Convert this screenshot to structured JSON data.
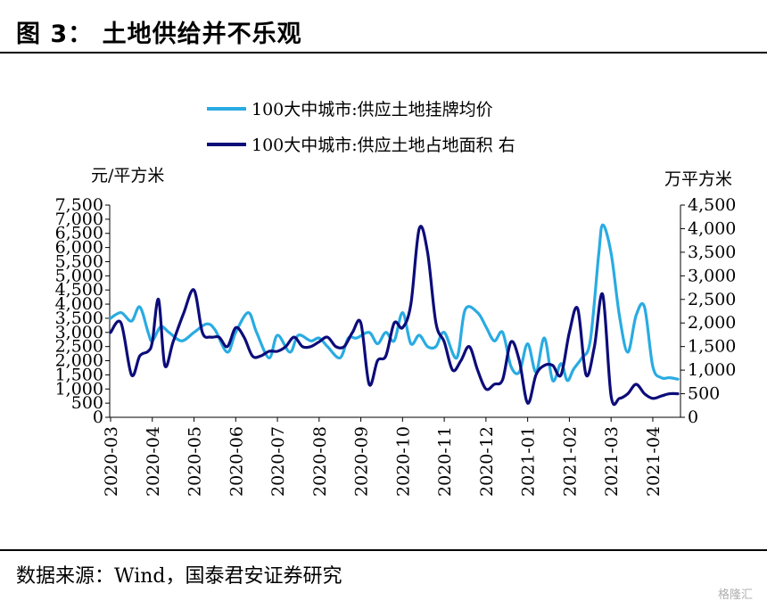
{
  "title": "图 3：  土地供给并不乐观",
  "source": "数据来源：Wind，国泰君安证券研究",
  "watermark": "格隆汇",
  "chart_data": {
    "type": "line",
    "left_unit": "元/平方米",
    "right_unit": "万平方米",
    "y_left_ticks": [
      "0",
      "500",
      "1,000",
      "1,500",
      "2,000",
      "2,500",
      "3,000",
      "3,500",
      "4,000",
      "4,500",
      "5,000",
      "5,500",
      "6,000",
      "6,500",
      "7,000",
      "7,500"
    ],
    "y_right_ticks": [
      "0",
      "500",
      "1,000",
      "1,500",
      "2,000",
      "2,500",
      "3,000",
      "3,500",
      "4,000",
      "4,500"
    ],
    "ylim_left": [
      0,
      7500
    ],
    "ylim_right": [
      0,
      4500
    ],
    "x_labels": [
      "2020-03",
      "2020-04",
      "2020-05",
      "2020-06",
      "2020-07",
      "2020-08",
      "2020-09",
      "2020-10",
      "2020-11",
      "2020-12",
      "2021-01",
      "2021-02",
      "2021-03",
      "2021-04"
    ],
    "x_range": [
      0,
      13.6
    ],
    "series": [
      {
        "name": "100大中城市:供应土地挂牌均价",
        "color": "#29abe2",
        "axis": "left",
        "x": [
          0,
          0.25,
          0.5,
          0.7,
          0.9,
          1.0,
          1.2,
          1.4,
          1.7,
          2.0,
          2.3,
          2.5,
          2.8,
          3.0,
          3.3,
          3.5,
          3.8,
          4.0,
          4.3,
          4.5,
          4.8,
          5.0,
          5.2,
          5.5,
          5.7,
          5.9,
          6.2,
          6.4,
          6.6,
          6.8,
          7.0,
          7.2,
          7.4,
          7.6,
          7.8,
          8.0,
          8.3,
          8.5,
          8.8,
          9.0,
          9.2,
          9.4,
          9.6,
          9.8,
          10.0,
          10.2,
          10.4,
          10.6,
          10.8,
          10.95,
          11.1,
          11.3,
          11.5,
          11.7,
          11.8,
          12.0,
          12.2,
          12.4,
          12.6,
          12.8,
          13.0,
          13.2,
          13.4,
          13.6
        ],
        "y": [
          3500,
          3700,
          3400,
          3900,
          3000,
          2700,
          3200,
          3000,
          2700,
          3000,
          3300,
          3100,
          2300,
          3000,
          3700,
          3000,
          2100,
          2900,
          2300,
          2900,
          2700,
          2800,
          2500,
          2100,
          2800,
          2800,
          3000,
          2600,
          3000,
          2700,
          3700,
          2600,
          2900,
          2500,
          2500,
          3000,
          2100,
          3800,
          3700,
          3200,
          2700,
          3000,
          1800,
          1600,
          2600,
          1600,
          2800,
          1300,
          1900,
          1300,
          1700,
          2100,
          2700,
          5700,
          6800,
          5800,
          3600,
          2300,
          3600,
          3900,
          1800,
          1400,
          1400,
          1350
        ]
      },
      {
        "name": "100大中城市:供应土地占地面积 右",
        "color": "#0c0c7a",
        "axis": "right",
        "x": [
          0,
          0.25,
          0.5,
          0.7,
          0.9,
          1.0,
          1.15,
          1.3,
          1.5,
          1.75,
          2.0,
          2.2,
          2.4,
          2.6,
          2.8,
          3.0,
          3.2,
          3.4,
          3.6,
          3.8,
          4.0,
          4.2,
          4.4,
          4.6,
          4.8,
          5.0,
          5.2,
          5.4,
          5.6,
          5.8,
          6.0,
          6.2,
          6.4,
          6.6,
          6.8,
          7.0,
          7.2,
          7.4,
          7.6,
          7.8,
          8.0,
          8.2,
          8.4,
          8.6,
          8.8,
          9.0,
          9.2,
          9.4,
          9.6,
          9.8,
          10.0,
          10.2,
          10.4,
          10.6,
          10.8,
          11.0,
          11.2,
          11.4,
          11.6,
          11.8,
          12.0,
          12.2,
          12.4,
          12.6,
          12.8,
          13.0,
          13.2,
          13.4,
          13.6
        ],
        "y": [
          1800,
          2000,
          900,
          1300,
          1400,
          1600,
          2500,
          1100,
          1600,
          2200,
          2700,
          1800,
          1700,
          1700,
          1500,
          1900,
          1700,
          1300,
          1300,
          1400,
          1400,
          1500,
          1700,
          1500,
          1500,
          1600,
          1700,
          1500,
          1500,
          1800,
          2000,
          700,
          1200,
          1300,
          2000,
          1900,
          2400,
          4000,
          3500,
          2000,
          1600,
          1000,
          1200,
          1500,
          1000,
          600,
          700,
          800,
          1600,
          1200,
          300,
          900,
          1100,
          1100,
          900,
          1800,
          2300,
          900,
          1500,
          2600,
          450,
          400,
          500,
          700,
          500,
          400,
          450,
          500,
          500
        ]
      }
    ]
  }
}
